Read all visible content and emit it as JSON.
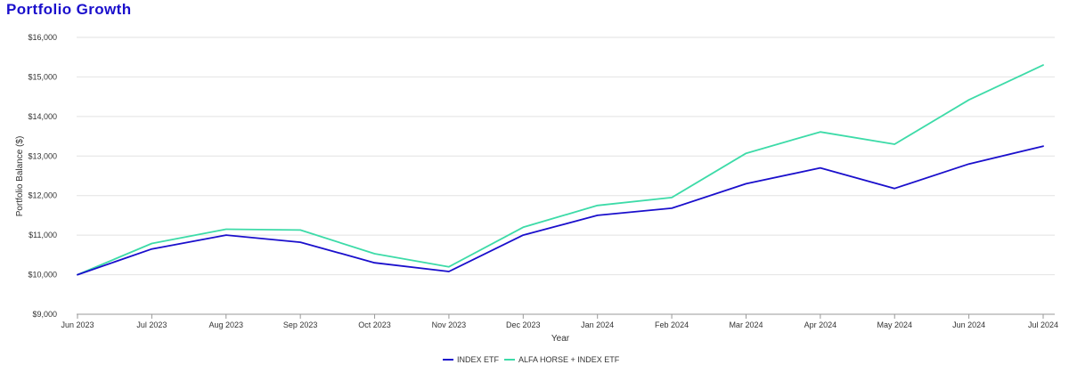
{
  "chart_data": {
    "type": "line",
    "title": "Portfolio Growth",
    "xlabel": "Year",
    "ylabel": "Portfolio Balance ($)",
    "ylim": [
      9000,
      16000
    ],
    "y_ticks": [
      "$9,000",
      "$10,000",
      "$11,000",
      "$12,000",
      "$13,000",
      "$14,000",
      "$15,000",
      "$16,000"
    ],
    "y_tick_values": [
      9000,
      10000,
      11000,
      12000,
      13000,
      14000,
      15000,
      16000
    ],
    "grid": "horizontal",
    "legend_position": "bottom-center",
    "categories": [
      "Jun 2023",
      "Jul 2023",
      "Aug 2023",
      "Sep 2023",
      "Oct 2023",
      "Nov 2023",
      "Dec 2023",
      "Jan 2024",
      "Feb 2024",
      "Mar 2024",
      "Apr 2024",
      "May 2024",
      "Jun 2024",
      "Jul 2024"
    ],
    "series": [
      {
        "name": "INDEX ETF",
        "color": "#1a0fcc",
        "values": [
          10000,
          10650,
          11000,
          10820,
          10300,
          10080,
          11000,
          11500,
          11680,
          12300,
          12700,
          12180,
          12800,
          13250
        ]
      },
      {
        "name": "ALFA HORSE + INDEX ETF",
        "color": "#3ddba8",
        "values": [
          10000,
          10790,
          11150,
          11130,
          10530,
          10200,
          11200,
          11750,
          11950,
          13070,
          13610,
          13300,
          14420,
          15300
        ]
      }
    ]
  },
  "colors": {
    "title": "#1a0fcc",
    "grid": "#e2e2e2",
    "axis": "#999999"
  }
}
